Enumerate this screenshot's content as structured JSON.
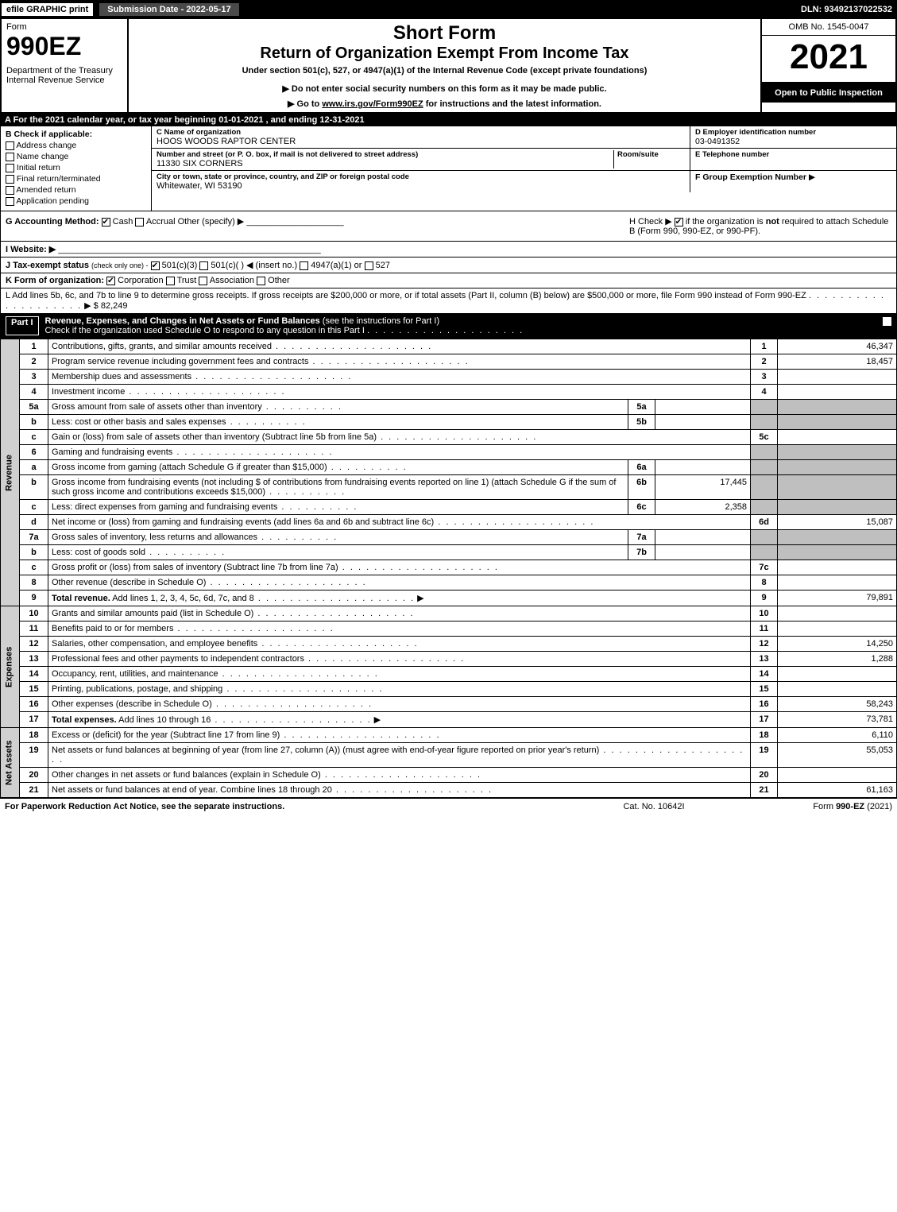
{
  "topbar": {
    "efile": "efile GRAPHIC print",
    "submission": "Submission Date - 2022-05-17",
    "dln": "DLN: 93492137022532"
  },
  "header": {
    "form_label": "Form",
    "form_number": "990EZ",
    "dept": "Department of the Treasury",
    "irs": "Internal Revenue Service",
    "short_form": "Short Form",
    "return_title": "Return of Organization Exempt From Income Tax",
    "under_section": "Under section 501(c), 527, or 4947(a)(1) of the Internal Revenue Code (except private foundations)",
    "instr1": "▶ Do not enter social security numbers on this form as it may be made public.",
    "instr2_pre": "▶ Go to ",
    "instr2_link": "www.irs.gov/Form990EZ",
    "instr2_post": " for instructions and the latest information.",
    "omb": "OMB No. 1545-0047",
    "year": "2021",
    "inspection": "Open to Public Inspection"
  },
  "A": {
    "text": "A  For the 2021 calendar year, or tax year beginning 01-01-2021 , and ending 12-31-2021"
  },
  "B": {
    "label": "B",
    "check_if": "Check if applicable:",
    "items": [
      "Address change",
      "Name change",
      "Initial return",
      "Final return/terminated",
      "Amended return",
      "Application pending"
    ]
  },
  "C": {
    "label": "C Name of organization",
    "org": "HOOS WOODS RAPTOR CENTER",
    "street_label": "Number and street (or P. O. box, if mail is not delivered to street address)",
    "room_label": "Room/suite",
    "street": "11330 SIX CORNERS",
    "city_label": "City or town, state or province, country, and ZIP or foreign postal code",
    "city": "Whitewater, WI  53190"
  },
  "D": {
    "label": "D Employer identification number",
    "ein": "03-0491352"
  },
  "E": {
    "label": "E Telephone number",
    "value": ""
  },
  "F": {
    "label": "F Group Exemption Number",
    "arrow": "▶"
  },
  "G": {
    "label": "G Accounting Method:",
    "cash": "Cash",
    "accrual": "Accrual",
    "other": "Other (specify) ▶"
  },
  "H": {
    "pre": "H   Check ▶ ",
    "post": " if the organization is ",
    "not": "not",
    "rest": " required to attach Schedule B (Form 990, 990-EZ, or 990-PF)."
  },
  "I": {
    "label": "I Website: ▶"
  },
  "J": {
    "label": "J Tax-exempt status",
    "small": "(check only one) -",
    "opt1": "501(c)(3)",
    "opt2": "501(c)(  ) ◀ (insert no.)",
    "opt3": "4947(a)(1) or",
    "opt4": "527"
  },
  "K": {
    "label": "K Form of organization:",
    "corp": "Corporation",
    "trust": "Trust",
    "assoc": "Association",
    "other": "Other"
  },
  "L": {
    "text": "L Add lines 5b, 6c, and 7b to line 9 to determine gross receipts. If gross receipts are $200,000 or more, or if total assets (Part II, column (B) below) are $500,000 or more, file Form 990 instead of Form 990-EZ",
    "amount": "▶ $ 82,249"
  },
  "part1": {
    "label": "Part I",
    "title": "Revenue, Expenses, and Changes in Net Assets or Fund Balances",
    "hint": "(see the instructions for Part I)",
    "checkline": "Check if the organization used Schedule O to respond to any question in this Part I"
  },
  "sides": {
    "revenue": "Revenue",
    "expenses": "Expenses",
    "netassets": "Net Assets"
  },
  "rows": [
    {
      "n": "1",
      "desc": "Contributions, gifts, grants, and similar amounts received",
      "rn": "1",
      "rv": "46,347"
    },
    {
      "n": "2",
      "desc": "Program service revenue including government fees and contracts",
      "rn": "2",
      "rv": "18,457"
    },
    {
      "n": "3",
      "desc": "Membership dues and assessments",
      "rn": "3",
      "rv": ""
    },
    {
      "n": "4",
      "desc": "Investment income",
      "rn": "4",
      "rv": ""
    },
    {
      "n": "5a",
      "desc": "Gross amount from sale of assets other than inventory",
      "mn": "5a",
      "mv": "",
      "rn": "",
      "rv": "",
      "rgrey": true
    },
    {
      "n": "b",
      "desc": "Less: cost or other basis and sales expenses",
      "mn": "5b",
      "mv": "",
      "rn": "",
      "rv": "",
      "rgrey": true
    },
    {
      "n": "c",
      "desc": "Gain or (loss) from sale of assets other than inventory (Subtract line 5b from line 5a)",
      "rn": "5c",
      "rv": ""
    },
    {
      "n": "6",
      "desc": "Gaming and fundraising events",
      "rn": "",
      "rv": "",
      "rgrey": true
    },
    {
      "n": "a",
      "desc": "Gross income from gaming (attach Schedule G if greater than $15,000)",
      "mn": "6a",
      "mv": "",
      "rn": "",
      "rv": "",
      "rgrey": true
    },
    {
      "n": "b",
      "desc": "Gross income from fundraising events (not including $                       of contributions from fundraising events reported on line 1) (attach Schedule G if the sum of such gross income and contributions exceeds $15,000)",
      "mn": "6b",
      "mv": "17,445",
      "rn": "",
      "rv": "",
      "rgrey": true
    },
    {
      "n": "c",
      "desc": "Less: direct expenses from gaming and fundraising events",
      "mn": "6c",
      "mv": "2,358",
      "rn": "",
      "rv": "",
      "rgrey": true
    },
    {
      "n": "d",
      "desc": "Net income or (loss) from gaming and fundraising events (add lines 6a and 6b and subtract line 6c)",
      "rn": "6d",
      "rv": "15,087"
    },
    {
      "n": "7a",
      "desc": "Gross sales of inventory, less returns and allowances",
      "mn": "7a",
      "mv": "",
      "rn": "",
      "rv": "",
      "rgrey": true
    },
    {
      "n": "b",
      "desc": "Less: cost of goods sold",
      "mn": "7b",
      "mv": "",
      "rn": "",
      "rv": "",
      "rgrey": true
    },
    {
      "n": "c",
      "desc": "Gross profit or (loss) from sales of inventory (Subtract line 7b from line 7a)",
      "rn": "7c",
      "rv": ""
    },
    {
      "n": "8",
      "desc": "Other revenue (describe in Schedule O)",
      "rn": "8",
      "rv": ""
    },
    {
      "n": "9",
      "desc": "Total revenue. Add lines 1, 2, 3, 4, 5c, 6d, 7c, and 8",
      "rn": "9",
      "rv": "79,891",
      "bold": true,
      "arrow": true
    }
  ],
  "exp_rows": [
    {
      "n": "10",
      "desc": "Grants and similar amounts paid (list in Schedule O)",
      "rn": "10",
      "rv": ""
    },
    {
      "n": "11",
      "desc": "Benefits paid to or for members",
      "rn": "11",
      "rv": ""
    },
    {
      "n": "12",
      "desc": "Salaries, other compensation, and employee benefits",
      "rn": "12",
      "rv": "14,250"
    },
    {
      "n": "13",
      "desc": "Professional fees and other payments to independent contractors",
      "rn": "13",
      "rv": "1,288"
    },
    {
      "n": "14",
      "desc": "Occupancy, rent, utilities, and maintenance",
      "rn": "14",
      "rv": ""
    },
    {
      "n": "15",
      "desc": "Printing, publications, postage, and shipping",
      "rn": "15",
      "rv": ""
    },
    {
      "n": "16",
      "desc": "Other expenses (describe in Schedule O)",
      "rn": "16",
      "rv": "58,243"
    },
    {
      "n": "17",
      "desc": "Total expenses. Add lines 10 through 16",
      "rn": "17",
      "rv": "73,781",
      "bold": true,
      "arrow": true
    }
  ],
  "net_rows": [
    {
      "n": "18",
      "desc": "Excess or (deficit) for the year (Subtract line 17 from line 9)",
      "rn": "18",
      "rv": "6,110"
    },
    {
      "n": "19",
      "desc": "Net assets or fund balances at beginning of year (from line 27, column (A)) (must agree with end-of-year figure reported on prior year's return)",
      "rn": "19",
      "rv": "55,053"
    },
    {
      "n": "20",
      "desc": "Other changes in net assets or fund balances (explain in Schedule O)",
      "rn": "20",
      "rv": ""
    },
    {
      "n": "21",
      "desc": "Net assets or fund balances at end of year. Combine lines 18 through 20",
      "rn": "21",
      "rv": "61,163"
    }
  ],
  "footer": {
    "left": "For Paperwork Reduction Act Notice, see the separate instructions.",
    "mid": "Cat. No. 10642I",
    "right_pre": "Form ",
    "right_bold": "990-EZ",
    "right_post": " (2021)"
  }
}
